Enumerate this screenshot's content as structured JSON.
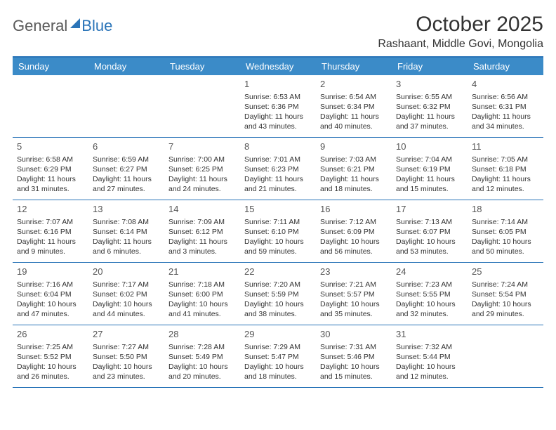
{
  "logo": {
    "part1": "General",
    "part2": "Blue"
  },
  "title": "October 2025",
  "location": "Rashaant, Middle Govi, Mongolia",
  "colors": {
    "header_bg": "#3b8bc8",
    "header_text": "#ffffff",
    "border": "#2a74b8",
    "text": "#333333",
    "logo_gray": "#5a5a5a",
    "logo_blue": "#2a74b8",
    "background": "#ffffff"
  },
  "fonts": {
    "title_size": 30,
    "location_size": 16,
    "dayhead_size": 13,
    "daynum_size": 13,
    "body_size": 10.5
  },
  "day_names": [
    "Sunday",
    "Monday",
    "Tuesday",
    "Wednesday",
    "Thursday",
    "Friday",
    "Saturday"
  ],
  "weeks": [
    [
      {
        "n": "",
        "l1": "",
        "l2": "",
        "l3": "",
        "l4": ""
      },
      {
        "n": "",
        "l1": "",
        "l2": "",
        "l3": "",
        "l4": ""
      },
      {
        "n": "",
        "l1": "",
        "l2": "",
        "l3": "",
        "l4": ""
      },
      {
        "n": "1",
        "l1": "Sunrise: 6:53 AM",
        "l2": "Sunset: 6:36 PM",
        "l3": "Daylight: 11 hours",
        "l4": "and 43 minutes."
      },
      {
        "n": "2",
        "l1": "Sunrise: 6:54 AM",
        "l2": "Sunset: 6:34 PM",
        "l3": "Daylight: 11 hours",
        "l4": "and 40 minutes."
      },
      {
        "n": "3",
        "l1": "Sunrise: 6:55 AM",
        "l2": "Sunset: 6:32 PM",
        "l3": "Daylight: 11 hours",
        "l4": "and 37 minutes."
      },
      {
        "n": "4",
        "l1": "Sunrise: 6:56 AM",
        "l2": "Sunset: 6:31 PM",
        "l3": "Daylight: 11 hours",
        "l4": "and 34 minutes."
      }
    ],
    [
      {
        "n": "5",
        "l1": "Sunrise: 6:58 AM",
        "l2": "Sunset: 6:29 PM",
        "l3": "Daylight: 11 hours",
        "l4": "and 31 minutes."
      },
      {
        "n": "6",
        "l1": "Sunrise: 6:59 AM",
        "l2": "Sunset: 6:27 PM",
        "l3": "Daylight: 11 hours",
        "l4": "and 27 minutes."
      },
      {
        "n": "7",
        "l1": "Sunrise: 7:00 AM",
        "l2": "Sunset: 6:25 PM",
        "l3": "Daylight: 11 hours",
        "l4": "and 24 minutes."
      },
      {
        "n": "8",
        "l1": "Sunrise: 7:01 AM",
        "l2": "Sunset: 6:23 PM",
        "l3": "Daylight: 11 hours",
        "l4": "and 21 minutes."
      },
      {
        "n": "9",
        "l1": "Sunrise: 7:03 AM",
        "l2": "Sunset: 6:21 PM",
        "l3": "Daylight: 11 hours",
        "l4": "and 18 minutes."
      },
      {
        "n": "10",
        "l1": "Sunrise: 7:04 AM",
        "l2": "Sunset: 6:19 PM",
        "l3": "Daylight: 11 hours",
        "l4": "and 15 minutes."
      },
      {
        "n": "11",
        "l1": "Sunrise: 7:05 AM",
        "l2": "Sunset: 6:18 PM",
        "l3": "Daylight: 11 hours",
        "l4": "and 12 minutes."
      }
    ],
    [
      {
        "n": "12",
        "l1": "Sunrise: 7:07 AM",
        "l2": "Sunset: 6:16 PM",
        "l3": "Daylight: 11 hours",
        "l4": "and 9 minutes."
      },
      {
        "n": "13",
        "l1": "Sunrise: 7:08 AM",
        "l2": "Sunset: 6:14 PM",
        "l3": "Daylight: 11 hours",
        "l4": "and 6 minutes."
      },
      {
        "n": "14",
        "l1": "Sunrise: 7:09 AM",
        "l2": "Sunset: 6:12 PM",
        "l3": "Daylight: 11 hours",
        "l4": "and 3 minutes."
      },
      {
        "n": "15",
        "l1": "Sunrise: 7:11 AM",
        "l2": "Sunset: 6:10 PM",
        "l3": "Daylight: 10 hours",
        "l4": "and 59 minutes."
      },
      {
        "n": "16",
        "l1": "Sunrise: 7:12 AM",
        "l2": "Sunset: 6:09 PM",
        "l3": "Daylight: 10 hours",
        "l4": "and 56 minutes."
      },
      {
        "n": "17",
        "l1": "Sunrise: 7:13 AM",
        "l2": "Sunset: 6:07 PM",
        "l3": "Daylight: 10 hours",
        "l4": "and 53 minutes."
      },
      {
        "n": "18",
        "l1": "Sunrise: 7:14 AM",
        "l2": "Sunset: 6:05 PM",
        "l3": "Daylight: 10 hours",
        "l4": "and 50 minutes."
      }
    ],
    [
      {
        "n": "19",
        "l1": "Sunrise: 7:16 AM",
        "l2": "Sunset: 6:04 PM",
        "l3": "Daylight: 10 hours",
        "l4": "and 47 minutes."
      },
      {
        "n": "20",
        "l1": "Sunrise: 7:17 AM",
        "l2": "Sunset: 6:02 PM",
        "l3": "Daylight: 10 hours",
        "l4": "and 44 minutes."
      },
      {
        "n": "21",
        "l1": "Sunrise: 7:18 AM",
        "l2": "Sunset: 6:00 PM",
        "l3": "Daylight: 10 hours",
        "l4": "and 41 minutes."
      },
      {
        "n": "22",
        "l1": "Sunrise: 7:20 AM",
        "l2": "Sunset: 5:59 PM",
        "l3": "Daylight: 10 hours",
        "l4": "and 38 minutes."
      },
      {
        "n": "23",
        "l1": "Sunrise: 7:21 AM",
        "l2": "Sunset: 5:57 PM",
        "l3": "Daylight: 10 hours",
        "l4": "and 35 minutes."
      },
      {
        "n": "24",
        "l1": "Sunrise: 7:23 AM",
        "l2": "Sunset: 5:55 PM",
        "l3": "Daylight: 10 hours",
        "l4": "and 32 minutes."
      },
      {
        "n": "25",
        "l1": "Sunrise: 7:24 AM",
        "l2": "Sunset: 5:54 PM",
        "l3": "Daylight: 10 hours",
        "l4": "and 29 minutes."
      }
    ],
    [
      {
        "n": "26",
        "l1": "Sunrise: 7:25 AM",
        "l2": "Sunset: 5:52 PM",
        "l3": "Daylight: 10 hours",
        "l4": "and 26 minutes."
      },
      {
        "n": "27",
        "l1": "Sunrise: 7:27 AM",
        "l2": "Sunset: 5:50 PM",
        "l3": "Daylight: 10 hours",
        "l4": "and 23 minutes."
      },
      {
        "n": "28",
        "l1": "Sunrise: 7:28 AM",
        "l2": "Sunset: 5:49 PM",
        "l3": "Daylight: 10 hours",
        "l4": "and 20 minutes."
      },
      {
        "n": "29",
        "l1": "Sunrise: 7:29 AM",
        "l2": "Sunset: 5:47 PM",
        "l3": "Daylight: 10 hours",
        "l4": "and 18 minutes."
      },
      {
        "n": "30",
        "l1": "Sunrise: 7:31 AM",
        "l2": "Sunset: 5:46 PM",
        "l3": "Daylight: 10 hours",
        "l4": "and 15 minutes."
      },
      {
        "n": "31",
        "l1": "Sunrise: 7:32 AM",
        "l2": "Sunset: 5:44 PM",
        "l3": "Daylight: 10 hours",
        "l4": "and 12 minutes."
      },
      {
        "n": "",
        "l1": "",
        "l2": "",
        "l3": "",
        "l4": ""
      }
    ]
  ]
}
